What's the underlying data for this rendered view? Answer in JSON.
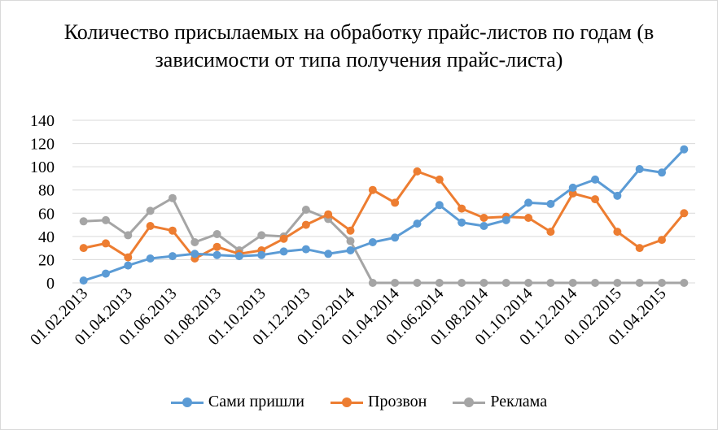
{
  "chart_data": {
    "type": "line",
    "title": "Количество присылаемых на обработку прайс-листов по годам (в зависимости от типа получения прайс-листа)",
    "ylim": [
      0,
      140
    ],
    "y_ticks": [
      "0",
      "20",
      "40",
      "60",
      "80",
      "100",
      "120",
      "140"
    ],
    "x_tick_labels": [
      "01.02.2013",
      "01.04.2013",
      "01.06.2013",
      "01.08.2013",
      "01.10.2013",
      "01.12.2013",
      "01.02.2014",
      "01.04.2014",
      "01.06.2014",
      "01.08.2014",
      "01.10.2014",
      "01.12.2014",
      "01.02.2015",
      "01.04.2015"
    ],
    "legend_position": "bottom",
    "series": [
      {
        "name": "Сами пришли",
        "color": "#5B9BD5",
        "values": [
          2,
          8,
          15,
          21,
          23,
          25,
          24,
          23,
          24,
          27,
          29,
          25,
          28,
          35,
          39,
          51,
          67,
          52,
          49,
          54,
          69,
          68,
          82,
          89,
          75,
          98,
          95,
          115
        ]
      },
      {
        "name": "Прозвон",
        "color": "#ED7D31",
        "values": [
          30,
          34,
          22,
          49,
          45,
          21,
          31,
          25,
          28,
          38,
          50,
          59,
          45,
          80,
          69,
          96,
          89,
          64,
          56,
          57,
          56,
          44,
          77,
          72,
          44,
          30,
          37,
          60
        ]
      },
      {
        "name": "Реклама",
        "color": "#A5A5A5",
        "values": [
          53,
          54,
          41,
          62,
          73,
          35,
          42,
          28,
          41,
          40,
          63,
          55,
          36,
          0,
          0,
          0,
          0,
          0,
          0,
          0,
          0,
          0,
          0,
          0,
          0,
          0,
          0,
          0
        ]
      }
    ]
  }
}
